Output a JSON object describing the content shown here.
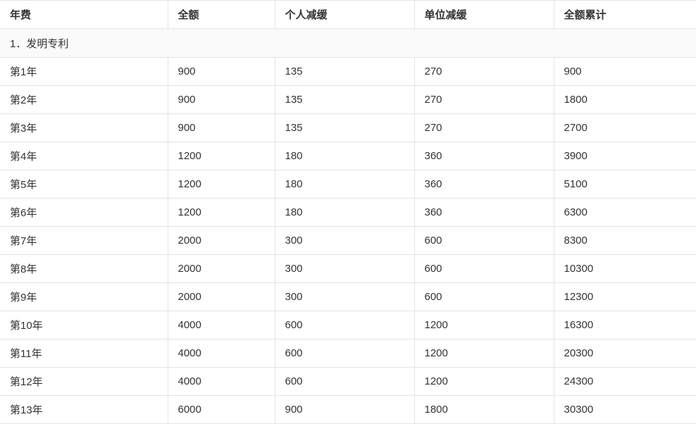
{
  "table": {
    "columns": [
      "年费",
      "全额",
      "个人减缓",
      "单位减缓",
      "全额累计"
    ],
    "section_label": "1．发明专利",
    "rows": [
      [
        "第1年",
        "900",
        "135",
        "270",
        "900"
      ],
      [
        "第2年",
        "900",
        "135",
        "270",
        "1800"
      ],
      [
        "第3年",
        "900",
        "135",
        "270",
        "2700"
      ],
      [
        "第4年",
        "1200",
        "180",
        "360",
        "3900"
      ],
      [
        "第5年",
        "1200",
        "180",
        "360",
        "5100"
      ],
      [
        "第6年",
        "1200",
        "180",
        "360",
        "6300"
      ],
      [
        "第7年",
        "2000",
        "300",
        "600",
        "8300"
      ],
      [
        "第8年",
        "2000",
        "300",
        "600",
        "10300"
      ],
      [
        "第9年",
        "2000",
        "300",
        "600",
        "12300"
      ],
      [
        "第10年",
        "4000",
        "600",
        "1200",
        "16300"
      ],
      [
        "第11年",
        "4000",
        "600",
        "1200",
        "20300"
      ],
      [
        "第12年",
        "4000",
        "600",
        "1200",
        "24300"
      ],
      [
        "第13年",
        "6000",
        "900",
        "1800",
        "30300"
      ]
    ]
  },
  "colors": {
    "border": "#e4e4e4",
    "text": "#333333",
    "section_row_background": "#fafafa",
    "row_background": "#ffffff"
  }
}
